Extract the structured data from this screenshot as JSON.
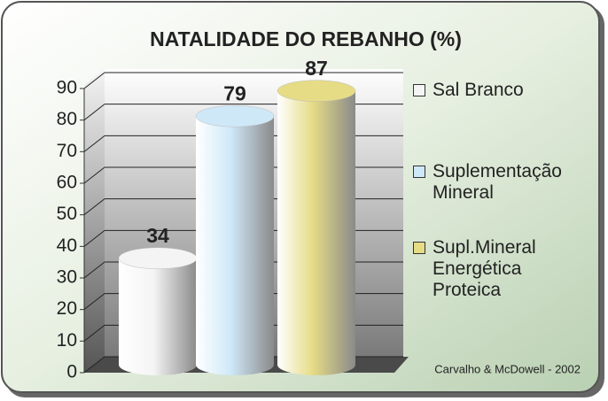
{
  "chart_data": {
    "type": "bar",
    "title": "NATALIDADE DO REBANHO (%)",
    "categories": [
      "Sal Branco",
      "Suplementação Mineral",
      "Supl.Mineral Energética Proteica"
    ],
    "series": [
      {
        "name": "Sal Branco",
        "color": "#f4f4f4"
      },
      {
        "name": "Suplementação Mineral",
        "color": "#cfe8f8"
      },
      {
        "name": "Supl.Mineral Energética Proteica",
        "color": "#e6dc86"
      }
    ],
    "values": [
      34,
      79,
      87
    ],
    "ylim": [
      0,
      90
    ],
    "yticks": [
      0,
      10,
      20,
      30,
      40,
      50,
      60,
      70,
      80,
      90
    ],
    "grid": true,
    "source": "Carvalho & McDowell - 2002"
  }
}
